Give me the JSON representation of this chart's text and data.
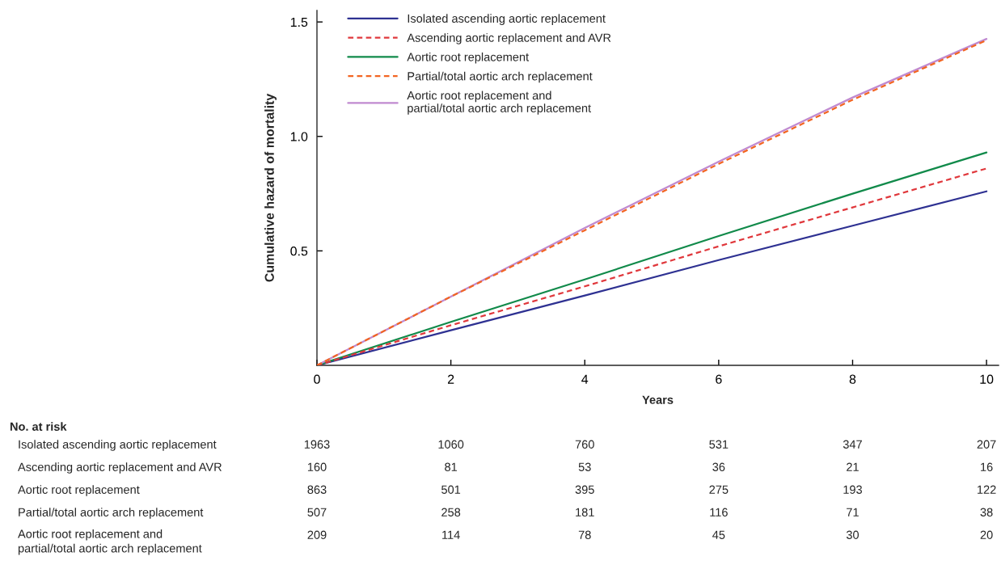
{
  "chart_data": {
    "type": "line",
    "xlabel": "Years",
    "ylabel": "Cumulative hazard of mortality",
    "x": [
      0,
      2,
      4,
      6,
      8,
      10
    ],
    "series": [
      {
        "name": "Isolated ascending aortic replacement",
        "color": "#2e3192",
        "line_style": "solid",
        "values": [
          0,
          0.153,
          0.305,
          0.46,
          0.61,
          0.76
        ]
      },
      {
        "name": "Ascending aortic replacement and AVR",
        "color": "#e0383c",
        "line_style": "dashed",
        "values": [
          0,
          0.175,
          0.345,
          0.52,
          0.69,
          0.86
        ]
      },
      {
        "name": "Aortic root replacement",
        "color": "#118a4a",
        "line_style": "solid",
        "values": [
          0,
          0.19,
          0.375,
          0.565,
          0.75,
          0.93
        ]
      },
      {
        "name": "Partial/total aortic arch replacement",
        "color": "#f26522",
        "line_style": "dashed",
        "values": [
          0,
          0.3,
          0.59,
          0.88,
          1.16,
          1.42
        ]
      },
      {
        "name": "Aortic root replacement and\npartial/total aortic arch replacement",
        "color": "#c08ad0",
        "line_style": "solid",
        "values": [
          0,
          0.3,
          0.6,
          0.89,
          1.17,
          1.426
        ]
      }
    ],
    "xlim": [
      0,
      10.18
    ],
    "xticks": [
      0,
      2,
      4,
      6,
      8,
      10
    ],
    "ylim": [
      0,
      1.55
    ],
    "yticks": [
      0.5,
      {
        "value": 1,
        "label": "1.0"
      },
      1.5
    ],
    "legend": "top left",
    "grid": false,
    "marker": "none",
    "annotations": [
      "No. at risk",
      "Isolated ascending aortic replacement\t1963\t1060\t760\t531\t347\t207",
      "Ascending aortic replacement and AVR\t160\t81\t53\t36\t21\t16",
      "Aortic root replacement\t863\t501\t395\t275\t193\t122",
      "Partial/total aortic arch replacement\t507\t258\t181\t116\t71\t38",
      "Aortic root replacement and\npartial/total aortic arch replacement\t209\t114\t78\t45\t30\t20"
    ]
  }
}
